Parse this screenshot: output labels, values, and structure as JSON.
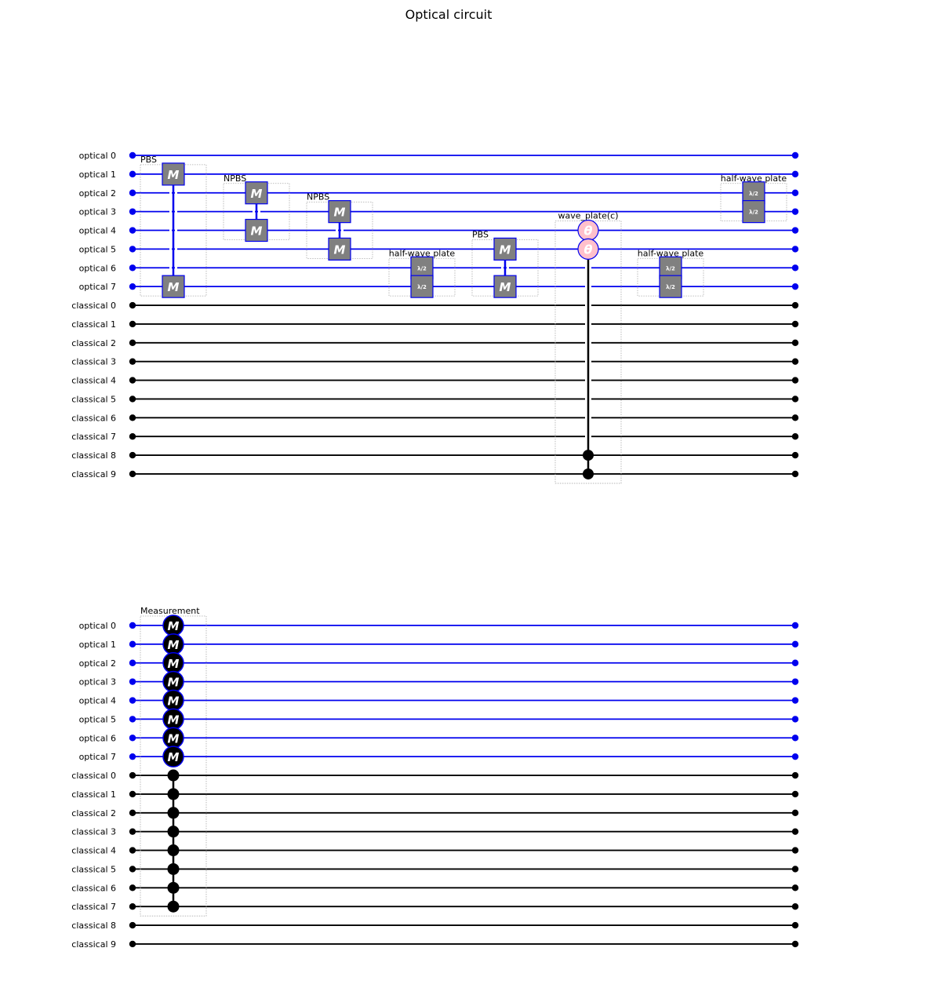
{
  "title": "Optical circuit",
  "wires": [
    "optical 0",
    "optical 1",
    "optical 2",
    "optical 3",
    "optical 4",
    "optical 5",
    "optical 6",
    "optical 7",
    "classical 0",
    "classical 1",
    "classical 2",
    "classical 3",
    "classical 4",
    "classical 5",
    "classical 6",
    "classical 7",
    "classical 8",
    "classical 9"
  ],
  "colors": {
    "optical": "#0000ee",
    "classical": "#000000",
    "gate_fill": "#808080",
    "theta_fill": "#ffc0cb",
    "frame": "#aaaaaa"
  },
  "icons": {
    "measure": "M",
    "half_wave": "λ/2",
    "theta": "θ"
  },
  "panels": [
    {
      "gates": [
        {
          "label": "PBS",
          "type": "pair",
          "symbol": "M",
          "wires": [
            1,
            7
          ],
          "column": 0
        },
        {
          "label": "NPBS",
          "type": "pair",
          "symbol": "M",
          "wires": [
            2,
            4
          ],
          "column": 1
        },
        {
          "label": "NPBS",
          "type": "pair",
          "symbol": "M",
          "wires": [
            3,
            5
          ],
          "column": 2
        },
        {
          "label": "half-wave plate",
          "type": "plate",
          "symbol": "λ/2",
          "wires": [
            6,
            7
          ],
          "column": 3
        },
        {
          "label": "PBS",
          "type": "pair",
          "symbol": "M",
          "wires": [
            5,
            7
          ],
          "column": 4
        },
        {
          "label": "wave_plate(c)",
          "type": "theta",
          "symbol": "θ",
          "wires": [
            4,
            5
          ],
          "controls": [
            16,
            17
          ],
          "column": 5
        },
        {
          "label": "half-wave plate",
          "type": "plate",
          "symbol": "λ/2",
          "wires": [
            6,
            7
          ],
          "column": 6
        },
        {
          "label": "half-wave plate",
          "type": "plate",
          "symbol": "λ/2",
          "wires": [
            2,
            3
          ],
          "column": 7
        }
      ]
    },
    {
      "gates": [
        {
          "label": "Measurement",
          "type": "measure",
          "symbol": "M",
          "wires": [
            0,
            1,
            2,
            3,
            4,
            5,
            6,
            7
          ],
          "controls": [
            8,
            9,
            10,
            11,
            12,
            13,
            14,
            15
          ],
          "column": 0
        }
      ]
    }
  ]
}
